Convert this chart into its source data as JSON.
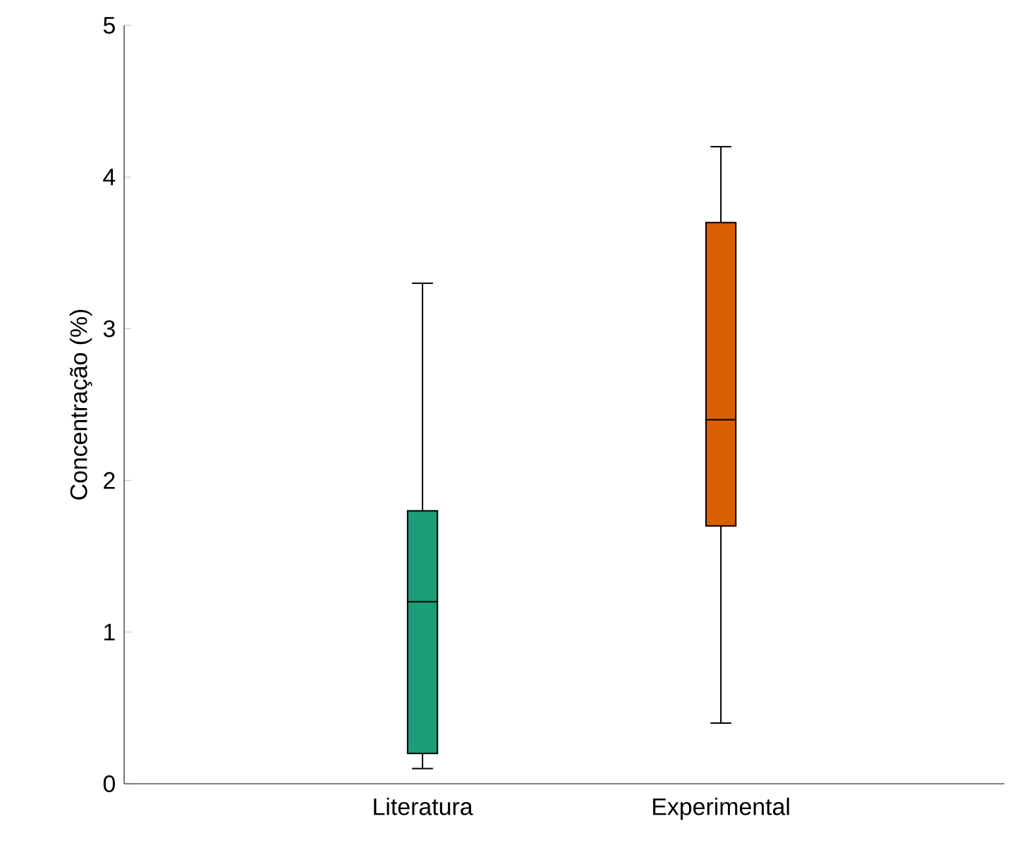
{
  "chart_data": {
    "type": "box",
    "ylabel": "Concentração (%)",
    "categories": [
      "Literatura",
      "Experimental"
    ],
    "colors": [
      "#1b9e77",
      "#d95f02"
    ],
    "boxes": [
      {
        "low": 0.1,
        "q1": 0.2,
        "median": 1.2,
        "q3": 1.8,
        "high": 3.3
      },
      {
        "low": 0.4,
        "q1": 1.7,
        "median": 2.4,
        "q3": 3.7,
        "high": 4.2
      }
    ],
    "ylim": [
      0,
      5
    ],
    "yticks": [
      0,
      1,
      2,
      3,
      4,
      5
    ]
  }
}
